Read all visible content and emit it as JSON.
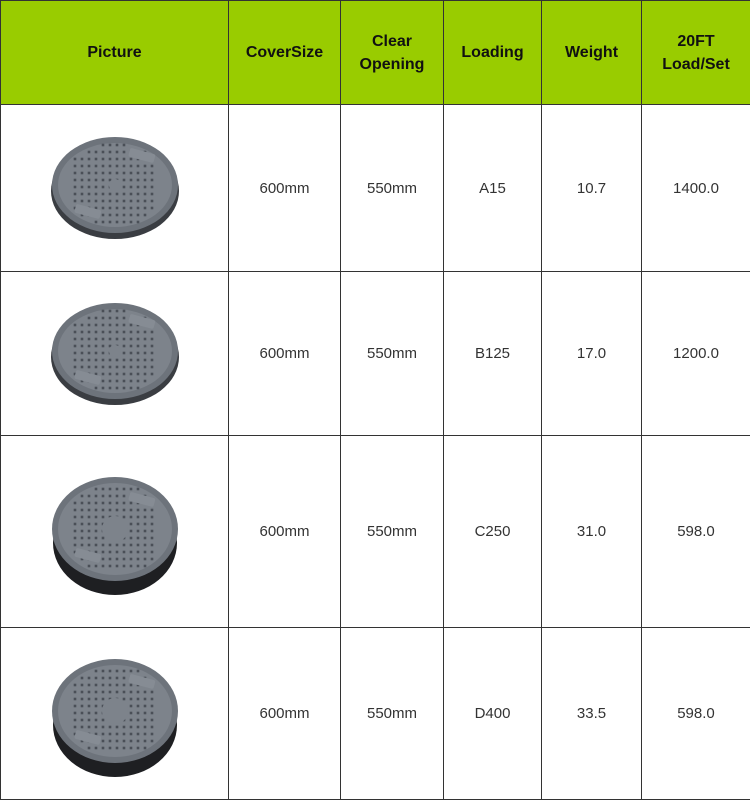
{
  "header": {
    "colors": {
      "header_bg": "#99cc00"
    },
    "columns": [
      "Picture",
      "CoverSize",
      "Clear Opening",
      "Loading",
      "Weight",
      "20FT Load/Set"
    ],
    "col_lines": [
      [
        "Picture"
      ],
      [
        "CoverSize"
      ],
      [
        "Clear",
        "Opening"
      ],
      [
        "Loading"
      ],
      [
        "Weight"
      ],
      [
        "20FT",
        "Load/Set"
      ]
    ]
  },
  "rows": [
    {
      "picture": "manhole-cover-image",
      "cover_size": "600mm",
      "clear_opening": "550mm",
      "loading": "A15",
      "weight": "10.7",
      "load_per_set": "1400.0"
    },
    {
      "picture": "manhole-cover-image",
      "cover_size": "600mm",
      "clear_opening": "550mm",
      "loading": "B125",
      "weight": "17.0",
      "load_per_set": "1200.0"
    },
    {
      "picture": "manhole-cover-image",
      "cover_size": "600mm",
      "clear_opening": "550mm",
      "loading": "C250",
      "weight": "31.0",
      "load_per_set": "598.0"
    },
    {
      "picture": "manhole-cover-image",
      "cover_size": "600mm",
      "clear_opening": "550mm",
      "loading": "D400",
      "weight": "33.5",
      "load_per_set": "598.0"
    }
  ]
}
